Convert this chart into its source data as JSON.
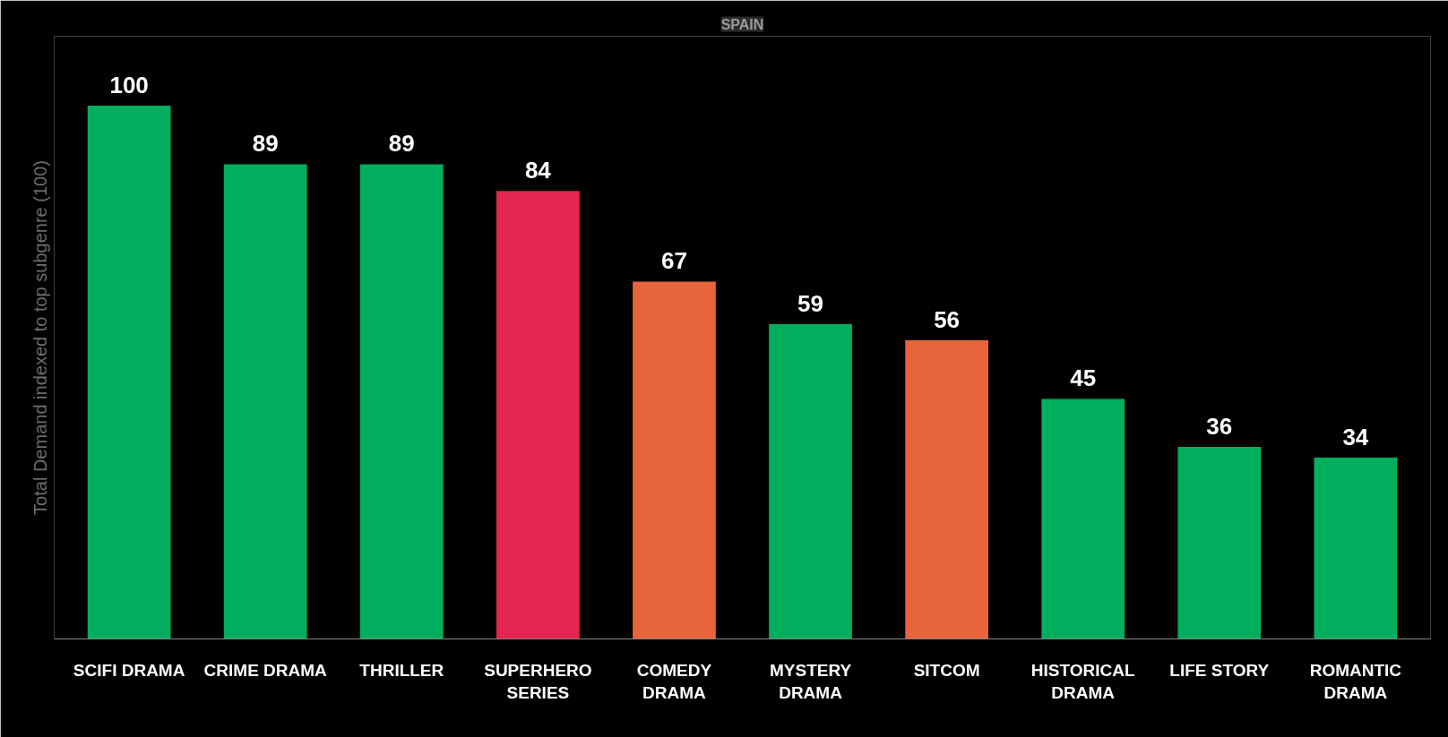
{
  "chart_data": {
    "type": "bar",
    "title": "SPAIN",
    "ylabel": "Total Demand indexed to top subgenre (100)",
    "categories": [
      "SCIFI DRAMA",
      "CRIME DRAMA",
      "THRILLER",
      "SUPERHERO SERIES",
      "COMEDY DRAMA",
      "MYSTERY DRAMA",
      "SITCOM",
      "HISTORICAL DRAMA",
      "LIFE STORY",
      "ROMANTIC DRAMA"
    ],
    "values": [
      100,
      89,
      89,
      84,
      67,
      59,
      56,
      45,
      36,
      34
    ],
    "colors": [
      "#00ae5e",
      "#00ae5e",
      "#00ae5e",
      "#e3264f",
      "#e8643a",
      "#00ae5e",
      "#e8643a",
      "#00ae5e",
      "#00ae5e",
      "#00ae5e"
    ],
    "data_labels": true,
    "grid": false
  }
}
